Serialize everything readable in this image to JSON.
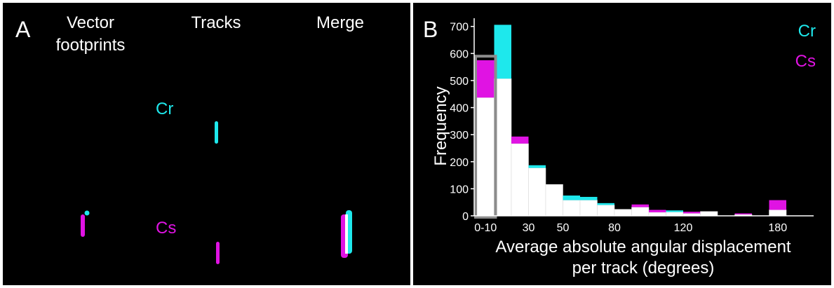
{
  "panel_a": {
    "letter": "A",
    "col1_title_line1": "Vector",
    "col1_title_line2": "footprints",
    "col2_title": "Tracks",
    "col3_title": "Merge",
    "label_cr": "Cr",
    "label_cs": "Cs"
  },
  "panel_b": {
    "letter": "B"
  },
  "colors": {
    "cr": "#1ee8ec",
    "cs": "#e013e3",
    "overlap": "#ffffff",
    "background": "#000000",
    "highlight": "#8c8c8c"
  },
  "chart_data": {
    "type": "bar",
    "stacked": true,
    "xlabel_line1": "Average absolute angular displacement",
    "xlabel_line2": "per track (degrees)",
    "ylabel": "Frequency",
    "ylim": [
      0,
      720
    ],
    "yticks": [
      0,
      100,
      200,
      300,
      400,
      500,
      600,
      700
    ],
    "bin_width": 10,
    "bins": [
      {
        "start": 0,
        "common": 437,
        "excess_color": "cs",
        "total": 575
      },
      {
        "start": 10,
        "common": 507,
        "excess_color": "cr",
        "total": 706
      },
      {
        "start": 20,
        "common": 267,
        "excess_color": "cs",
        "total": 293
      },
      {
        "start": 30,
        "common": 177,
        "excess_color": "cr",
        "total": 187
      },
      {
        "start": 40,
        "common": 116,
        "excess_color": "cs",
        "total": 116
      },
      {
        "start": 50,
        "common": 58,
        "excess_color": "cr",
        "total": 75
      },
      {
        "start": 60,
        "common": 58,
        "excess_color": "cr",
        "total": 70
      },
      {
        "start": 70,
        "common": 40,
        "excess_color": "cr",
        "total": 47
      },
      {
        "start": 80,
        "common": 24,
        "excess_color": "cs",
        "total": 24
      },
      {
        "start": 90,
        "common": 32,
        "excess_color": "cs",
        "total": 42
      },
      {
        "start": 100,
        "common": 13,
        "excess_color": "cs",
        "total": 22
      },
      {
        "start": 110,
        "common": 14,
        "excess_color": "cr",
        "total": 20
      },
      {
        "start": 120,
        "common": 9,
        "excess_color": "cs",
        "total": 15
      },
      {
        "start": 130,
        "common": 16,
        "excess_color": "cs",
        "total": 16
      },
      {
        "start": 140,
        "common": 0,
        "excess_color": "cs",
        "total": 0
      },
      {
        "start": 150,
        "common": 5,
        "excess_color": "cs",
        "total": 9
      },
      {
        "start": 160,
        "common": 0,
        "excess_color": "cs",
        "total": 0
      },
      {
        "start": 170,
        "common": 22,
        "excess_color": "cs",
        "total": 58
      }
    ],
    "xtick_labels": [
      {
        "value": 5,
        "label": "0-10"
      },
      {
        "value": 30,
        "label": "30"
      },
      {
        "value": 50,
        "label": "50"
      },
      {
        "value": 80,
        "label": "80"
      },
      {
        "value": 120,
        "label": "120"
      },
      {
        "value": 180,
        "label": "180"
      }
    ],
    "legend": [
      {
        "name": "Cr",
        "color": "#1ee8ec"
      },
      {
        "name": "Cs",
        "color": "#e013e3"
      }
    ],
    "legend_position": "top-right",
    "highlighted_bin": "0-10"
  }
}
